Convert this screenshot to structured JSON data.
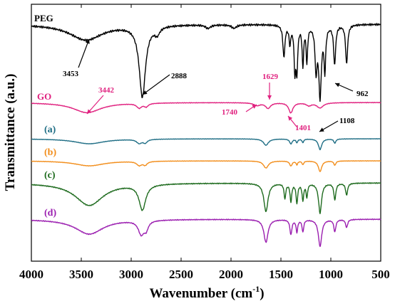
{
  "chart_data": {
    "type": "line",
    "xlabel": "Wavenumber (cm",
    "xlabel_sup": "-1",
    "xlabel_close": ")",
    "ylabel": "Transmittance (a.u.)",
    "xlim": [
      4000,
      500
    ],
    "x_reversed": true,
    "xticks": [
      4000,
      3500,
      3000,
      2500,
      2000,
      1500,
      1000,
      500
    ],
    "xtick_labels": [
      "4000",
      "3500",
      "3000",
      "2500",
      "2000",
      "1500",
      "1000",
      "500"
    ],
    "y_ticks_shown": false,
    "series": [
      {
        "name": "PEG",
        "color": "#000000",
        "label_color": "#000000",
        "offset": 0.0,
        "amp": 1.0,
        "base": 0.02,
        "peaks": [
          [
            3453,
            0.22,
            200
          ],
          [
            2888,
            1.0,
            38
          ],
          [
            2740,
            0.1,
            30
          ],
          [
            2230,
            0.05,
            30
          ],
          [
            1970,
            0.05,
            30
          ],
          [
            1470,
            0.45,
            12
          ],
          [
            1410,
            0.25,
            10
          ],
          [
            1360,
            0.6,
            10
          ],
          [
            1340,
            0.6,
            10
          ],
          [
            1280,
            0.55,
            9
          ],
          [
            1240,
            0.5,
            9
          ],
          [
            1148,
            0.6,
            12
          ],
          [
            1108,
            0.98,
            16
          ],
          [
            1060,
            0.6,
            10
          ],
          [
            962,
            0.55,
            12
          ],
          [
            842,
            0.55,
            12
          ]
        ]
      },
      {
        "name": "GO",
        "color": "#e0217f",
        "label_color": "#e0217f",
        "offset": 0.0,
        "amp": 1.0,
        "base": 0.0,
        "peaks": [
          [
            3442,
            0.55,
            170
          ],
          [
            2920,
            0.25,
            30
          ],
          [
            2850,
            0.18,
            25
          ],
          [
            1740,
            0.15,
            40
          ],
          [
            1629,
            0.3,
            30
          ],
          [
            1401,
            0.55,
            25
          ],
          [
            1220,
            0.15,
            30
          ],
          [
            1108,
            0.28,
            40
          ]
        ]
      },
      {
        "name": "(a)",
        "color": "#1f6e85",
        "label_color": "#1f6e85",
        "offset": 0.0,
        "amp": 1.0,
        "base": 0.0,
        "peaks": [
          [
            3420,
            0.35,
            180
          ],
          [
            2920,
            0.28,
            30
          ],
          [
            2860,
            0.25,
            25
          ],
          [
            1650,
            0.45,
            30
          ],
          [
            1400,
            0.35,
            15
          ],
          [
            1340,
            0.25,
            10
          ],
          [
            1280,
            0.25,
            10
          ],
          [
            1108,
            0.75,
            20
          ],
          [
            960,
            0.3,
            12
          ]
        ]
      },
      {
        "name": "(b)",
        "color": "#f28e1c",
        "label_color": "#f28e1c",
        "offset": 0.0,
        "amp": 1.0,
        "base": 0.0,
        "peaks": [
          [
            3420,
            0.35,
            180
          ],
          [
            2920,
            0.28,
            30
          ],
          [
            2860,
            0.25,
            25
          ],
          [
            1650,
            0.5,
            30
          ],
          [
            1400,
            0.35,
            15
          ],
          [
            1340,
            0.25,
            10
          ],
          [
            1280,
            0.25,
            10
          ],
          [
            1108,
            0.75,
            20
          ],
          [
            960,
            0.3,
            12
          ]
        ]
      },
      {
        "name": "(c)",
        "color": "#1e6b1e",
        "label_color": "#1e6b1e",
        "offset": 0.0,
        "amp": 1.0,
        "base": 0.0,
        "peaks": [
          [
            3420,
            0.75,
            170
          ],
          [
            2888,
            0.85,
            40
          ],
          [
            1650,
            0.95,
            25
          ],
          [
            1460,
            0.5,
            10
          ],
          [
            1400,
            0.6,
            10
          ],
          [
            1340,
            0.65,
            10
          ],
          [
            1280,
            0.55,
            10
          ],
          [
            1240,
            0.45,
            9
          ],
          [
            1108,
            1.0,
            18
          ],
          [
            960,
            0.55,
            12
          ],
          [
            842,
            0.4,
            12
          ]
        ]
      },
      {
        "name": "(d)",
        "color": "#9b1fb0",
        "label_color": "#9b1fb0",
        "offset": 0.0,
        "amp": 1.0,
        "base": 0.0,
        "peaks": [
          [
            3420,
            0.55,
            170
          ],
          [
            2900,
            0.5,
            35
          ],
          [
            2850,
            0.3,
            25
          ],
          [
            1650,
            0.85,
            25
          ],
          [
            1400,
            0.55,
            12
          ],
          [
            1340,
            0.45,
            10
          ],
          [
            1280,
            0.45,
            10
          ],
          [
            1108,
            1.0,
            20
          ],
          [
            960,
            0.45,
            12
          ],
          [
            842,
            0.3,
            12
          ]
        ]
      }
    ],
    "annotations": [
      {
        "text": "3453",
        "color": "#000000"
      },
      {
        "text": "2888",
        "color": "#000000"
      },
      {
        "text": "962",
        "color": "#000000"
      },
      {
        "text": "3442",
        "color": "#e0217f"
      },
      {
        "text": "1629",
        "color": "#e0217f"
      },
      {
        "text": "1740",
        "color": "#e0217f"
      },
      {
        "text": "1401",
        "color": "#e0217f"
      },
      {
        "text": "1108",
        "color": "#000000"
      }
    ]
  }
}
